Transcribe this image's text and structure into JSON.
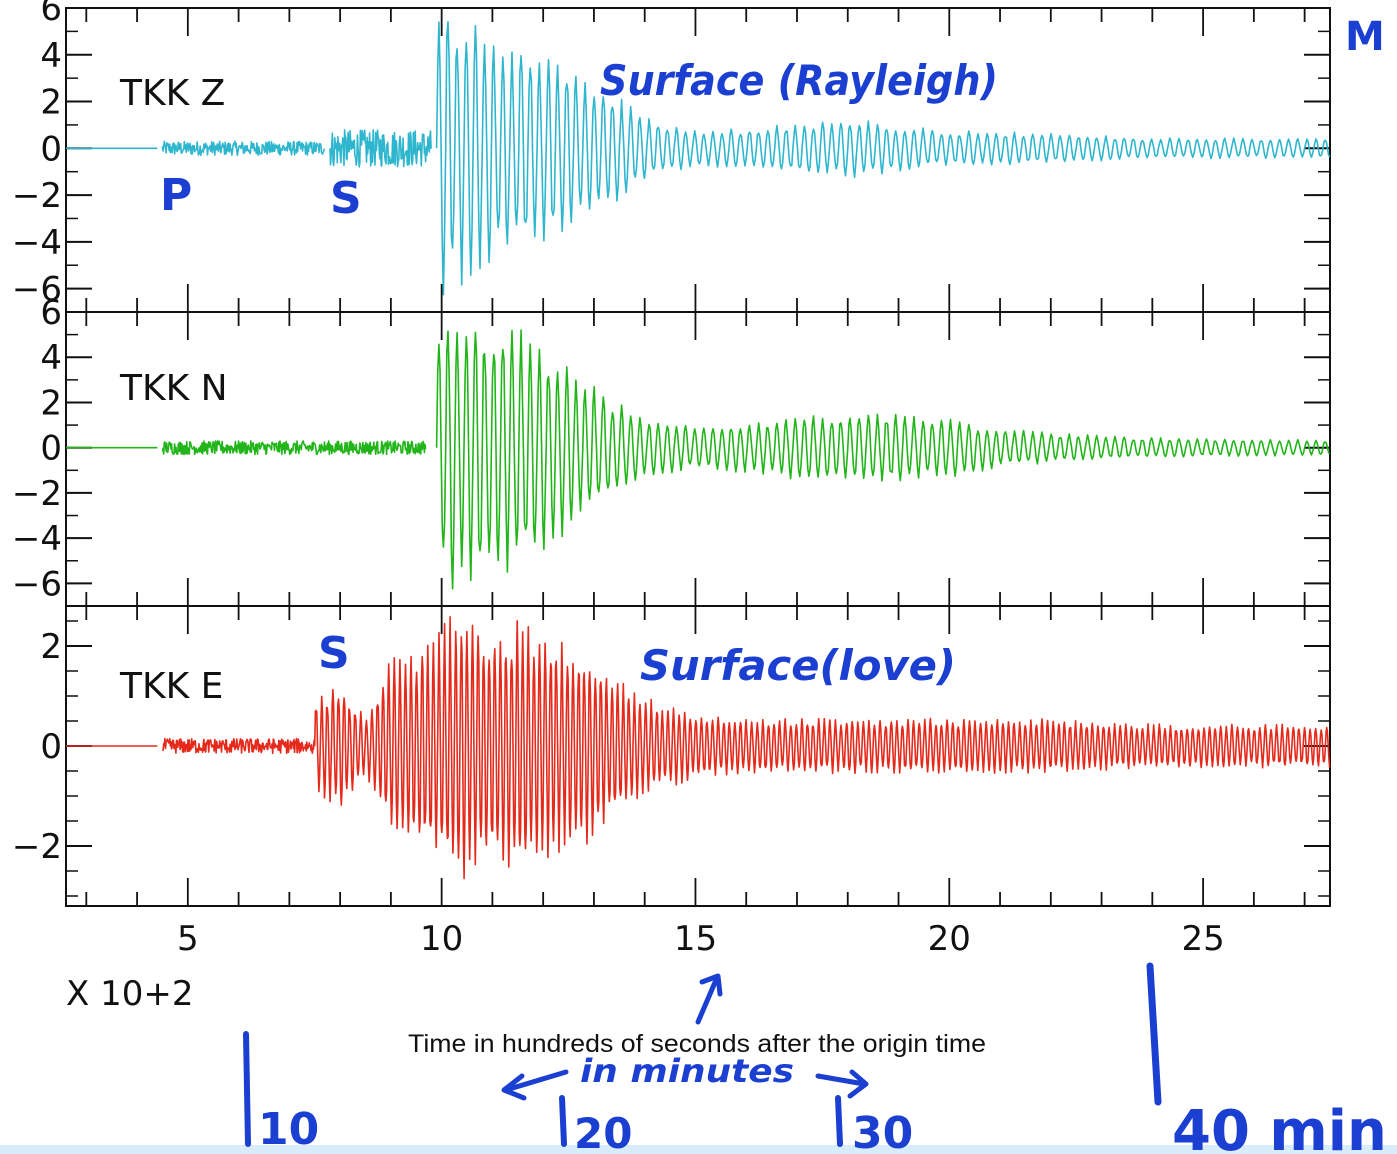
{
  "chart_data": {
    "type": "line",
    "title": "",
    "xlabel": "Time in hundreds of seconds after the origin time",
    "x_multiplier": "X 10+2",
    "xlim": [
      2.6,
      27.5
    ],
    "xticks": [
      "5",
      "10",
      "15",
      "20",
      "25"
    ],
    "colors": {
      "Z": "#2fb6cf",
      "N": "#22b51a",
      "E": "#e52a1c",
      "ink": "#1a3fd1"
    },
    "panels": [
      {
        "label": "TKK Z",
        "ylim": [
          -7,
          6
        ],
        "yticks": [
          "6",
          "4",
          "2",
          "0",
          "−2",
          "−4",
          "−6"
        ],
        "series": [
          {
            "x": [
              2.6,
              4.4
            ],
            "y": [
              0,
              0
            ]
          },
          {
            "x": [
              4.5,
              7.7
            ],
            "y": [
              0.3,
              -0.3
            ],
            "kind": "noise"
          },
          {
            "x": [
              7.8,
              9.8
            ],
            "y": [
              0.8,
              -0.8
            ],
            "kind": "noise"
          },
          {
            "x": [
              10.0,
              10.1,
              10.2,
              10.4,
              10.6,
              11.0,
              11.5,
              12.0,
              12.5,
              13.0,
              13.5,
              14.0,
              15.0,
              16.0,
              17.0,
              18.0,
              19.0,
              20.0,
              22.0,
              24.0,
              27.5
            ],
            "y": [
              5.2,
              -6.8,
              5.0,
              -5.5,
              5.4,
              4.6,
              4.2,
              3.8,
              3.2,
              2.6,
              2.0,
              1.2,
              0.7,
              0.8,
              1.0,
              1.2,
              0.9,
              0.7,
              0.6,
              0.4,
              0.4
            ],
            "kind": "envelope"
          }
        ]
      },
      {
        "label": "TKK N",
        "ylim": [
          -7,
          6
        ],
        "yticks": [
          "6",
          "4",
          "2",
          "0",
          "−2",
          "−4",
          "−6"
        ],
        "series": [
          {
            "x": [
              2.6,
              4.4
            ],
            "y": [
              0,
              0
            ]
          },
          {
            "x": [
              4.5,
              9.7
            ],
            "y": [
              0.3,
              -0.3
            ],
            "kind": "noise"
          },
          {
            "x": [
              10.0,
              10.2,
              10.5,
              11.0,
              11.5,
              12.0,
              12.5,
              13.0,
              13.5,
              14.0,
              15.0,
              16.0,
              17.0,
              18.0,
              19.0,
              20.0,
              21.0,
              22.0,
              24.0,
              27.5
            ],
            "y": [
              5.8,
              -6.0,
              5.5,
              5.2,
              5.0,
              4.3,
              3.5,
              2.5,
              1.8,
              1.2,
              0.9,
              1.0,
              1.3,
              1.4,
              1.4,
              1.2,
              0.8,
              0.6,
              0.4,
              0.3
            ],
            "kind": "envelope"
          }
        ]
      },
      {
        "label": "TKK E",
        "ylim": [
          -3.2,
          2.8
        ],
        "yticks": [
          "2",
          "0",
          "−2"
        ],
        "series": [
          {
            "x": [
              2.6,
              4.4
            ],
            "y": [
              0,
              0
            ]
          },
          {
            "x": [
              4.5,
              7.5
            ],
            "y": [
              0.15,
              -0.15
            ],
            "kind": "noise"
          },
          {
            "x": [
              7.6,
              8.0,
              8.5,
              9.0,
              9.5,
              10.0,
              10.5,
              11.0,
              11.5,
              12.0,
              12.5,
              13.0,
              13.5,
              14.0,
              15.0,
              16.0,
              18.0,
              20.0,
              22.0,
              24.0,
              27.5
            ],
            "y": [
              0.9,
              1.2,
              0.5,
              1.6,
              1.9,
              2.3,
              2.5,
              2.2,
              2.3,
              2.1,
              2.0,
              1.7,
              1.2,
              0.9,
              0.6,
              0.5,
              0.5,
              0.5,
              0.5,
              0.4,
              0.4
            ],
            "kind": "envelope"
          }
        ]
      }
    ],
    "annotations": {
      "p": "P",
      "s_z": "S",
      "s_e": "S",
      "rayleigh": "Surface (Rayleigh)",
      "love": "Surface(love)",
      "m": "M",
      "in_minutes": "in minutes",
      "min10": "10",
      "min20": "20",
      "min30": "30",
      "min40": "40 min"
    }
  }
}
